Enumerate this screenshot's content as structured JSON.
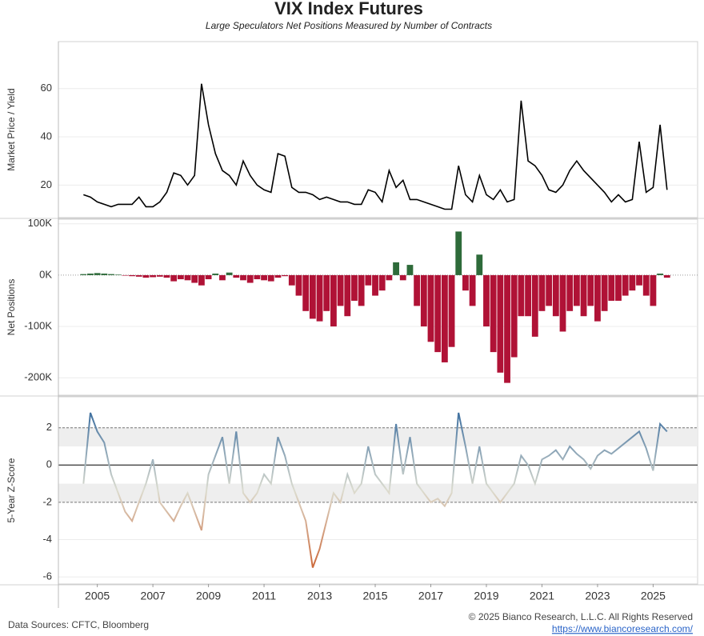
{
  "title": "VIX Index Futures",
  "subtitle": "Large Speculators Net Positions Measured by Number of Contracts",
  "sources": "Data Sources: CFTC, Bloomberg",
  "copyright": "© 2025 Bianco Research, L.L.C. All Rights Reserved",
  "url": "https://www.biancoresearch.com/",
  "chart_data": [
    {
      "type": "line",
      "ylabel": "Market Price / Yield",
      "color": "#000000",
      "xlim": [
        2003.6,
        2026.6
      ],
      "ylim": [
        6.5,
        79.5
      ],
      "yticks": [
        20,
        40,
        60
      ],
      "x": [
        2004.5,
        2004.75,
        2005,
        2005.25,
        2005.5,
        2005.75,
        2006,
        2006.25,
        2006.5,
        2006.75,
        2007,
        2007.25,
        2007.5,
        2007.75,
        2008,
        2008.25,
        2008.5,
        2008.75,
        2009,
        2009.25,
        2009.5,
        2009.75,
        2010,
        2010.25,
        2010.5,
        2010.75,
        2011,
        2011.25,
        2011.5,
        2011.75,
        2012,
        2012.25,
        2012.5,
        2012.75,
        2013,
        2013.25,
        2013.5,
        2013.75,
        2014,
        2014.25,
        2014.5,
        2014.75,
        2015,
        2015.25,
        2015.5,
        2015.75,
        2016,
        2016.25,
        2016.5,
        2016.75,
        2017,
        2017.25,
        2017.5,
        2017.75,
        2018,
        2018.25,
        2018.5,
        2018.75,
        2019,
        2019.25,
        2019.5,
        2019.75,
        2020,
        2020.25,
        2020.5,
        2020.75,
        2021,
        2021.25,
        2021.5,
        2021.75,
        2022,
        2022.25,
        2022.5,
        2022.75,
        2023,
        2023.25,
        2023.5,
        2023.75,
        2024,
        2024.25,
        2024.5,
        2024.75,
        2025,
        2025.25,
        2025.5
      ],
      "values": [
        16,
        15,
        13,
        12,
        11,
        12,
        12,
        12,
        15,
        11,
        11,
        13,
        17,
        25,
        24,
        20,
        24,
        62,
        45,
        33,
        26,
        24,
        20,
        30,
        24,
        20,
        18,
        17,
        33,
        32,
        19,
        17,
        17,
        16,
        14,
        15,
        14,
        13,
        13,
        12,
        12,
        18,
        17,
        13,
        26,
        19,
        22,
        14,
        14,
        13,
        12,
        11,
        10,
        10,
        28,
        16,
        13,
        24,
        16,
        14,
        18,
        13,
        14,
        55,
        30,
        28,
        24,
        18,
        17,
        20,
        26,
        30,
        26,
        23,
        20,
        17,
        13,
        16,
        13,
        14,
        38,
        17,
        19,
        45,
        18
      ]
    },
    {
      "type": "bar",
      "ylabel": "Net Positions",
      "colors": {
        "positive": "#2e6b3a",
        "negative": "#b01236"
      },
      "xlim": [
        2003.6,
        2026.6
      ],
      "ylim": [
        -234000,
        109000
      ],
      "yticks": [
        {
          "value": 100000,
          "label": "100K"
        },
        {
          "value": 0,
          "label": "0K"
        },
        {
          "value": -100000,
          "label": "-100K"
        },
        {
          "value": -200000,
          "label": "-200K"
        }
      ],
      "x": [
        2004.5,
        2004.75,
        2005,
        2005.25,
        2005.5,
        2005.75,
        2006,
        2006.25,
        2006.5,
        2006.75,
        2007,
        2007.25,
        2007.5,
        2007.75,
        2008,
        2008.25,
        2008.5,
        2008.75,
        2009,
        2009.25,
        2009.5,
        2009.75,
        2010,
        2010.25,
        2010.5,
        2010.75,
        2011,
        2011.25,
        2011.5,
        2011.75,
        2012,
        2012.25,
        2012.5,
        2012.75,
        2013,
        2013.25,
        2013.5,
        2013.75,
        2014,
        2014.25,
        2014.5,
        2014.75,
        2015,
        2015.25,
        2015.5,
        2015.75,
        2016,
        2016.25,
        2016.5,
        2016.75,
        2017,
        2017.25,
        2017.5,
        2017.75,
        2018,
        2018.25,
        2018.5,
        2018.75,
        2019,
        2019.25,
        2019.5,
        2019.75,
        2020,
        2020.25,
        2020.5,
        2020.75,
        2021,
        2021.25,
        2021.5,
        2021.75,
        2022,
        2022.25,
        2022.5,
        2022.75,
        2023,
        2023.25,
        2023.5,
        2023.75,
        2024,
        2024.25,
        2024.5,
        2024.75,
        2025,
        2025.25,
        2025.5
      ],
      "values": [
        2000,
        3000,
        4000,
        3000,
        2000,
        1000,
        -1000,
        -2000,
        -3000,
        -5000,
        -4000,
        -3000,
        -5000,
        -12000,
        -8000,
        -10000,
        -15000,
        -20000,
        -8000,
        3000,
        -10000,
        5000,
        -5000,
        -10000,
        -15000,
        -8000,
        -10000,
        -12000,
        -5000,
        -2000,
        -20000,
        -40000,
        -70000,
        -85000,
        -90000,
        -70000,
        -100000,
        -60000,
        -80000,
        -50000,
        -60000,
        -20000,
        -40000,
        -30000,
        -10000,
        25000,
        -10000,
        20000,
        -60000,
        -100000,
        -130000,
        -150000,
        -170000,
        -140000,
        85000,
        -30000,
        -60000,
        40000,
        -100000,
        -150000,
        -190000,
        -210000,
        -160000,
        -80000,
        -80000,
        -120000,
        -70000,
        -60000,
        -80000,
        -110000,
        -70000,
        -60000,
        -80000,
        -60000,
        -90000,
        -70000,
        -50000,
        -50000,
        -40000,
        -30000,
        -20000,
        -40000,
        -60000,
        3000,
        -5000
      ]
    },
    {
      "type": "line",
      "ylabel": "5-Year Z-Score",
      "color_scale": [
        "#1f5a96",
        "#dcdccf",
        "#c8501a"
      ],
      "xlim": [
        2003.6,
        2026.6
      ],
      "ylim": [
        -6.38,
        3.66
      ],
      "yticks": [
        2,
        0,
        -2,
        -4,
        -6
      ],
      "bands": [
        [
          1,
          2
        ],
        [
          -2,
          -1
        ]
      ],
      "reference_lines": [
        2,
        -2
      ],
      "xticks": [
        2005,
        2007,
        2009,
        2011,
        2013,
        2015,
        2017,
        2019,
        2021,
        2023,
        2025
      ],
      "x": [
        2004.5,
        2004.75,
        2005,
        2005.25,
        2005.5,
        2005.75,
        2006,
        2006.25,
        2006.5,
        2006.75,
        2007,
        2007.25,
        2007.5,
        2007.75,
        2008,
        2008.25,
        2008.5,
        2008.75,
        2009,
        2009.25,
        2009.5,
        2009.75,
        2010,
        2010.25,
        2010.5,
        2010.75,
        2011,
        2011.25,
        2011.5,
        2011.75,
        2012,
        2012.25,
        2012.5,
        2012.75,
        2013,
        2013.25,
        2013.5,
        2013.75,
        2014,
        2014.25,
        2014.5,
        2014.75,
        2015,
        2015.25,
        2015.5,
        2015.75,
        2016,
        2016.25,
        2016.5,
        2016.75,
        2017,
        2017.25,
        2017.5,
        2017.75,
        2018,
        2018.25,
        2018.5,
        2018.75,
        2019,
        2019.25,
        2019.5,
        2019.75,
        2020,
        2020.25,
        2020.5,
        2020.75,
        2021,
        2021.25,
        2021.5,
        2021.75,
        2022,
        2022.25,
        2022.5,
        2022.75,
        2023,
        2023.25,
        2023.5,
        2023.75,
        2024,
        2024.25,
        2024.5,
        2024.75,
        2025,
        2025.25,
        2025.5
      ],
      "values": [
        -1,
        2.8,
        1.8,
        1.2,
        -0.5,
        -1.5,
        -2.5,
        -3,
        -2,
        -1,
        0.3,
        -2,
        -2.5,
        -3,
        -2.2,
        -1.5,
        -2.5,
        -3.5,
        -0.5,
        0.5,
        1.5,
        -1,
        1.8,
        -1.5,
        -2,
        -1.5,
        -0.5,
        -1,
        1.5,
        0.5,
        -1,
        -2,
        -3,
        -5.5,
        -4.5,
        -3,
        -1.5,
        -2,
        -0.5,
        -1.5,
        -1,
        1,
        -0.5,
        -1,
        -1.5,
        2.2,
        -0.5,
        1.5,
        -1,
        -1.5,
        -2,
        -1.8,
        -2.2,
        -1.5,
        2.8,
        1,
        -1,
        1,
        -1,
        -1.5,
        -2,
        -1.5,
        -1,
        0.5,
        0,
        -1,
        0.3,
        0.5,
        0.8,
        0.3,
        1,
        0.6,
        0.3,
        -0.2,
        0.5,
        0.8,
        0.6,
        0.9,
        1.2,
        1.5,
        1.8,
        0.9,
        -0.3,
        2.2,
        1.8
      ]
    }
  ]
}
